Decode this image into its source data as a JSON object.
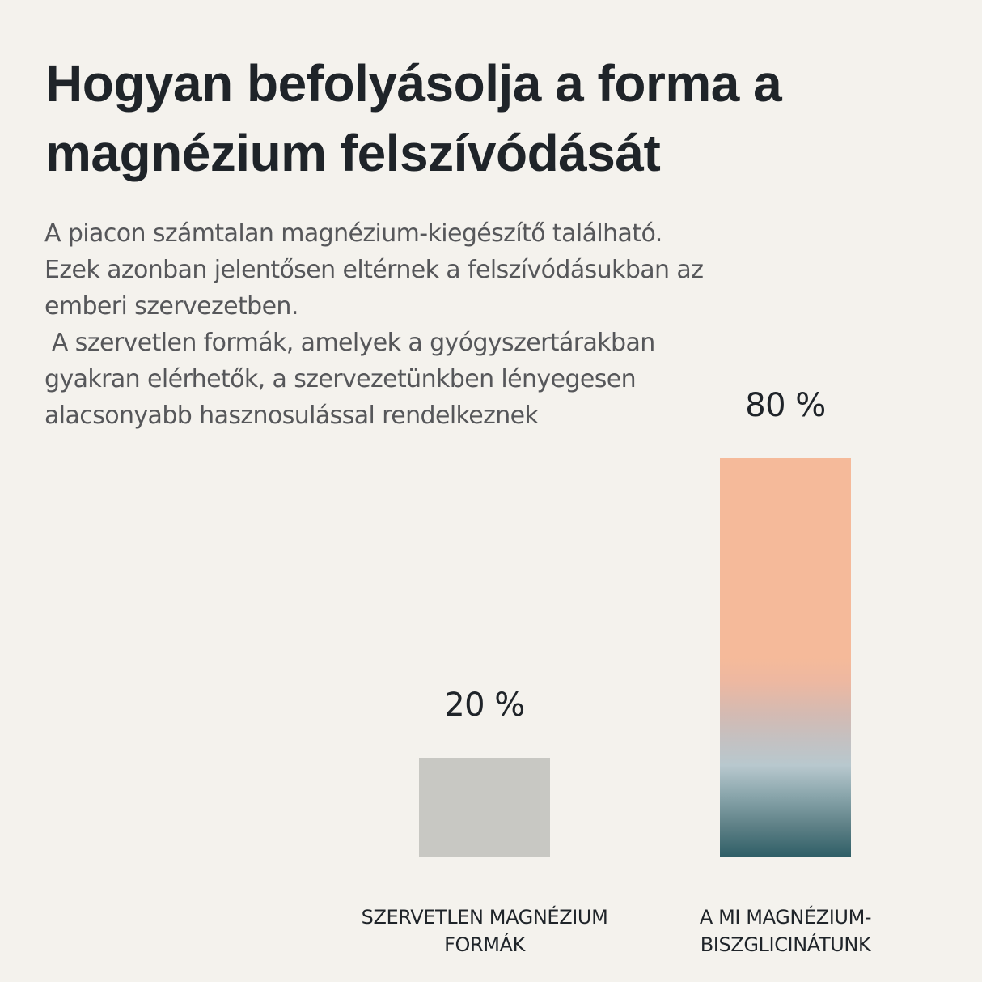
{
  "title": {
    "lines": [
      "Hogyan befolyásolja a forma a",
      "magnézium felszívódását"
    ]
  },
  "description": {
    "lines": [
      "A piacon számtalan magnézium-kiegészítő található.",
      "Ezek azonban jelentősen eltérnek a felszívódásukban az",
      "emberi szervezetben.",
      " A szervetlen formák, amelyek a gyógyszertárakban",
      "gyakran elérhetők, a szervezetünkben lényegesen",
      "alacsonyabb hasznosulással rendelkeznek"
    ]
  },
  "bars": [
    {
      "value_label": "20 %",
      "category_lines": [
        "SZERVETLEN MAGNÉZIUM",
        "FORMÁK"
      ],
      "color": "#C8C8C3"
    },
    {
      "value_label": "80 %",
      "category_lines": [
        "A MI MAGNÉZIUM-",
        "BISZGLICINÁTUNK"
      ],
      "gradient": [
        "#F5BA9A",
        "#C5C0C0",
        "#B8C8CE",
        "#2E5E66"
      ]
    }
  ],
  "colors": {
    "background": "#F4F2ED",
    "text": "#1F2429",
    "body_text": "#56575A"
  },
  "chart_data": {
    "type": "bar",
    "title": "Hogyan befolyásolja a forma a magnézium felszívódását",
    "categories": [
      "SZERVETLEN MAGNÉZIUM FORMÁK",
      "A MI MAGNÉZIUM-BISZGLICINÁTUNK"
    ],
    "values": [
      20,
      80
    ],
    "value_labels": [
      "20 %",
      "80 %"
    ],
    "xlabel": "",
    "ylabel": "",
    "ylim": [
      0,
      80
    ],
    "grid": false,
    "legend": null,
    "unit": "%"
  }
}
